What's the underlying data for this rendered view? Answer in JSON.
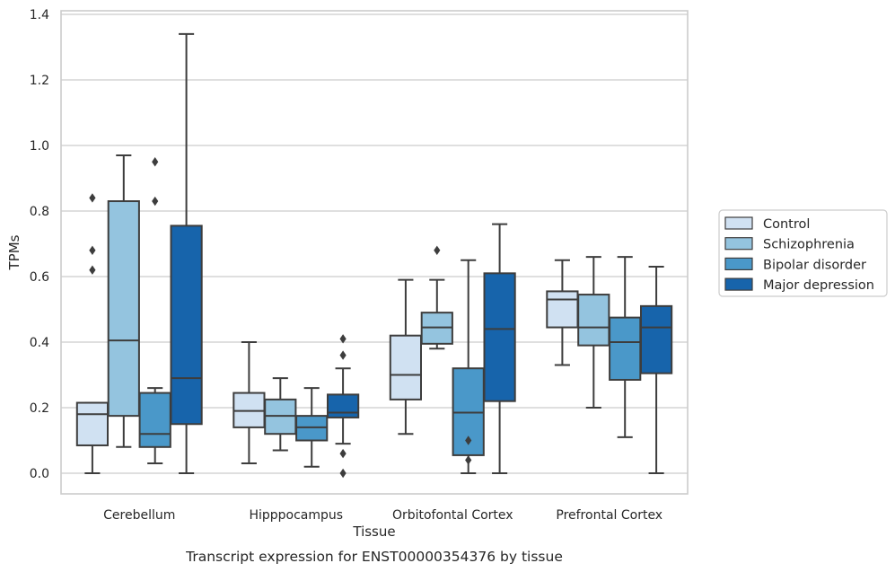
{
  "chart_data": {
    "type": "box",
    "title": "",
    "xlabel": "Tissue",
    "ylabel": "TPMs",
    "caption": "Transcript expression for ENST00000354376 by tissue",
    "ylim": [
      -0.06,
      1.41
    ],
    "yticks": [
      "0.0",
      "0.2",
      "0.4",
      "0.6",
      "0.8",
      "1.0",
      "1.2",
      "1.4"
    ],
    "ytick_values": [
      0,
      0.2,
      0.4,
      0.6,
      0.8,
      1.0,
      1.2,
      1.4
    ],
    "grid": "horizontal",
    "legend_position": "outside-right",
    "categories": [
      "Cerebellum",
      "Hipppocampus",
      "Orbitofontal Cortex",
      "Prefrontal Cortex"
    ],
    "series": [
      {
        "name": "Control",
        "color": "#d0e1f2",
        "boxes": [
          {
            "min": 0.0,
            "q1": 0.085,
            "median": 0.18,
            "q3": 0.215,
            "max": 0.215,
            "outliers": [
              0.62,
              0.68,
              0.84
            ]
          },
          {
            "min": 0.03,
            "q1": 0.14,
            "median": 0.19,
            "q3": 0.245,
            "max": 0.4,
            "outliers": []
          },
          {
            "min": 0.12,
            "q1": 0.225,
            "median": 0.3,
            "q3": 0.42,
            "max": 0.59,
            "outliers": []
          },
          {
            "min": 0.33,
            "q1": 0.445,
            "median": 0.53,
            "q3": 0.555,
            "max": 0.65,
            "outliers": []
          }
        ]
      },
      {
        "name": "Schizophrenia",
        "color": "#94c4df",
        "boxes": [
          {
            "min": 0.08,
            "q1": 0.175,
            "median": 0.405,
            "q3": 0.83,
            "max": 0.97,
            "outliers": []
          },
          {
            "min": 0.07,
            "q1": 0.12,
            "median": 0.175,
            "q3": 0.225,
            "max": 0.29,
            "outliers": []
          },
          {
            "min": 0.38,
            "q1": 0.395,
            "median": 0.445,
            "q3": 0.49,
            "max": 0.59,
            "outliers": [
              0.68
            ]
          },
          {
            "min": 0.2,
            "q1": 0.39,
            "median": 0.445,
            "q3": 0.545,
            "max": 0.66,
            "outliers": []
          }
        ]
      },
      {
        "name": "Bipolar disorder",
        "color": "#4a98c9",
        "boxes": [
          {
            "min": 0.03,
            "q1": 0.08,
            "median": 0.12,
            "q3": 0.245,
            "max": 0.26,
            "outliers": [
              0.83,
              0.95
            ]
          },
          {
            "min": 0.02,
            "q1": 0.1,
            "median": 0.14,
            "q3": 0.175,
            "max": 0.26,
            "outliers": []
          },
          {
            "min": 0.0,
            "q1": 0.055,
            "median": 0.185,
            "q3": 0.32,
            "max": 0.65,
            "outliers": [
              0.04,
              0.1
            ]
          },
          {
            "min": 0.11,
            "q1": 0.285,
            "median": 0.4,
            "q3": 0.475,
            "max": 0.66,
            "outliers": []
          }
        ]
      },
      {
        "name": "Major depression",
        "color": "#1764ab",
        "boxes": [
          {
            "min": 0.0,
            "q1": 0.15,
            "median": 0.29,
            "q3": 0.755,
            "max": 1.34,
            "outliers": []
          },
          {
            "min": 0.09,
            "q1": 0.17,
            "median": 0.185,
            "q3": 0.24,
            "max": 0.32,
            "outliers": [
              0.0,
              0.06,
              0.36,
              0.41
            ]
          },
          {
            "min": 0.0,
            "q1": 0.22,
            "median": 0.44,
            "q3": 0.61,
            "max": 0.76,
            "outliers": []
          },
          {
            "min": 0.0,
            "q1": 0.305,
            "median": 0.445,
            "q3": 0.51,
            "max": 0.63,
            "outliers": []
          }
        ]
      }
    ]
  }
}
